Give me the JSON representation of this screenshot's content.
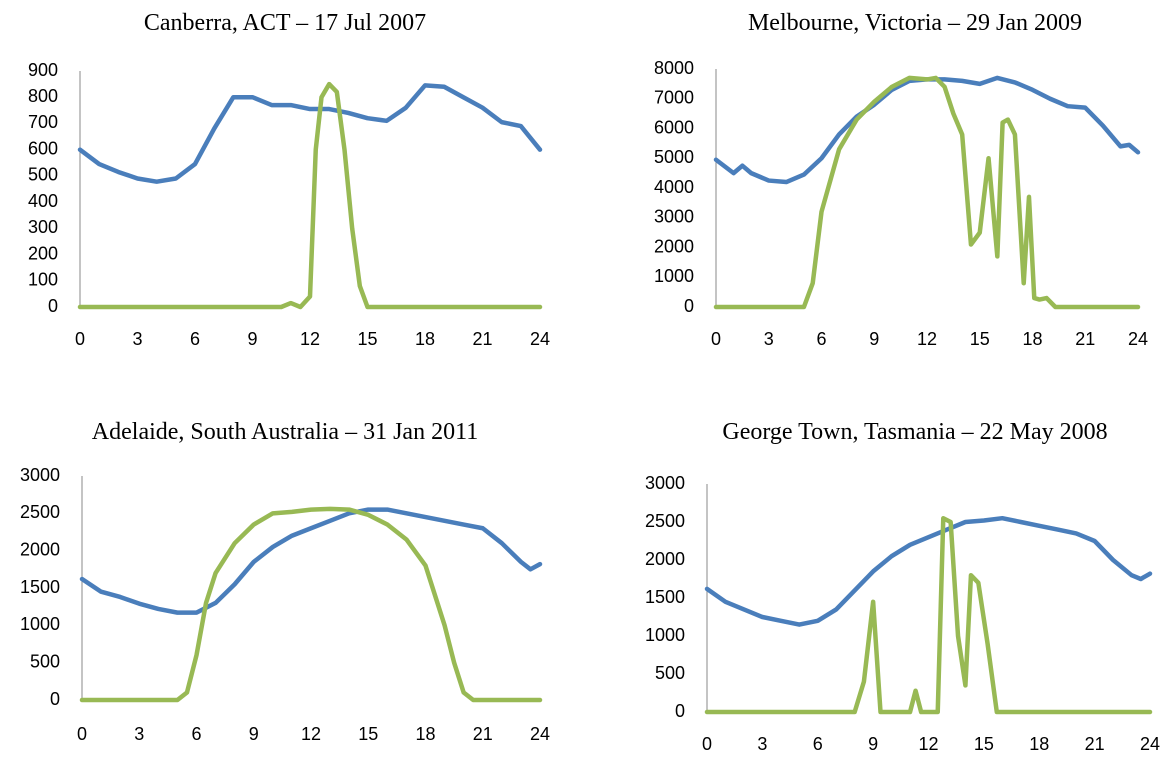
{
  "chart_data": [
    {
      "type": "line",
      "title": "Canberra, ACT – 17 Jul 2007",
      "xlim": [
        0,
        24
      ],
      "xticks": [
        0,
        3,
        6,
        9,
        12,
        15,
        18,
        21,
        24
      ],
      "ylim": [
        0,
        900
      ],
      "yticks": [
        0,
        100,
        200,
        300,
        400,
        500,
        600,
        700,
        800,
        900
      ],
      "series": [
        {
          "color": "#4a7ebb",
          "x": [
            0,
            1,
            2,
            3,
            4,
            5,
            6,
            7,
            8,
            9,
            10,
            11,
            12,
            13,
            14,
            15,
            16,
            17,
            18,
            19,
            20,
            21,
            22,
            23,
            24
          ],
          "values": [
            600,
            545,
            515,
            490,
            478,
            490,
            545,
            680,
            800,
            800,
            770,
            770,
            755,
            755,
            740,
            720,
            710,
            760,
            845,
            840,
            800,
            760,
            705,
            690,
            600
          ]
        },
        {
          "color": "#98b954",
          "x": [
            0,
            10.5,
            11,
            11.5,
            12,
            12.3,
            12.6,
            13,
            13.4,
            13.8,
            14.2,
            14.6,
            15,
            24
          ],
          "values": [
            0,
            0,
            15,
            0,
            40,
            600,
            800,
            850,
            820,
            600,
            300,
            80,
            0,
            0
          ]
        }
      ]
    },
    {
      "type": "line",
      "title": "Melbourne, Victoria – 29 Jan 2009",
      "xlim": [
        0,
        24
      ],
      "xticks": [
        0,
        3,
        6,
        9,
        12,
        15,
        18,
        21,
        24
      ],
      "ylim": [
        0,
        8000
      ],
      "yticks": [
        0,
        1000,
        2000,
        3000,
        4000,
        5000,
        6000,
        7000,
        8000
      ],
      "series": [
        {
          "color": "#4a7ebb",
          "x": [
            0,
            1,
            1.5,
            2,
            3,
            4,
            5,
            6,
            7,
            8,
            9,
            10,
            11,
            12,
            13,
            14,
            15,
            16,
            17,
            18,
            19,
            20,
            21,
            22,
            23,
            23.5,
            24
          ],
          "values": [
            4950,
            4500,
            4750,
            4500,
            4250,
            4200,
            4450,
            5000,
            5800,
            6400,
            6800,
            7300,
            7600,
            7650,
            7650,
            7600,
            7500,
            7700,
            7550,
            7300,
            7000,
            6750,
            6700,
            6100,
            5400,
            5450,
            5200
          ]
        },
        {
          "color": "#98b954",
          "x": [
            0,
            5,
            5.5,
            6,
            7,
            8,
            9,
            10,
            11,
            12,
            12.5,
            13,
            13.5,
            14,
            14.5,
            15,
            15.5,
            16,
            16.3,
            16.6,
            17,
            17.5,
            17.8,
            18.1,
            18.4,
            18.8,
            19.3,
            20,
            24
          ],
          "values": [
            0,
            0,
            800,
            3200,
            5300,
            6300,
            6900,
            7400,
            7700,
            7650,
            7700,
            7400,
            6500,
            5800,
            2100,
            2500,
            5000,
            1700,
            6200,
            6300,
            5800,
            800,
            3700,
            300,
            250,
            300,
            0,
            0,
            0
          ]
        }
      ]
    },
    {
      "type": "line",
      "title": "Adelaide, South Australia – 31 Jan 2011",
      "xlim": [
        0,
        24
      ],
      "xticks": [
        0,
        3,
        6,
        9,
        12,
        15,
        18,
        21,
        24
      ],
      "ylim": [
        0,
        3000
      ],
      "yticks": [
        0,
        500,
        1000,
        1500,
        2000,
        2500,
        3000
      ],
      "series": [
        {
          "color": "#4a7ebb",
          "x": [
            0,
            1,
            2,
            3,
            4,
            5,
            6,
            7,
            8,
            9,
            10,
            11,
            12,
            13,
            14,
            15,
            16,
            17,
            18,
            19,
            20,
            21,
            22,
            23,
            23.5,
            24
          ],
          "values": [
            1620,
            1450,
            1380,
            1290,
            1220,
            1170,
            1170,
            1300,
            1550,
            1850,
            2050,
            2200,
            2300,
            2400,
            2500,
            2550,
            2550,
            2500,
            2450,
            2400,
            2350,
            2300,
            2100,
            1850,
            1750,
            1820
          ]
        },
        {
          "color": "#98b954",
          "x": [
            0,
            5,
            5.5,
            6,
            6.5,
            7,
            8,
            9,
            10,
            11,
            12,
            13,
            14,
            15,
            16,
            17,
            18,
            19,
            19.5,
            20,
            20.5,
            21,
            24
          ],
          "values": [
            0,
            0,
            100,
            600,
            1300,
            1700,
            2100,
            2350,
            2500,
            2520,
            2550,
            2560,
            2550,
            2480,
            2350,
            2150,
            1800,
            1000,
            500,
            100,
            0,
            0,
            0
          ]
        }
      ]
    },
    {
      "type": "line",
      "title": "George Town, Tasmania – 22 May 2008",
      "xlim": [
        0,
        24
      ],
      "xticks": [
        0,
        3,
        6,
        9,
        12,
        15,
        18,
        21,
        24
      ],
      "ylim": [
        0,
        3000
      ],
      "yticks": [
        0,
        500,
        1000,
        1500,
        2000,
        2500,
        3000
      ],
      "series": [
        {
          "color": "#4a7ebb",
          "x": [
            0,
            1,
            2,
            3,
            4,
            5,
            6,
            7,
            8,
            9,
            10,
            11,
            12,
            13,
            14,
            15,
            16,
            17,
            18,
            19,
            20,
            21,
            22,
            23,
            23.5,
            24
          ],
          "values": [
            1620,
            1450,
            1350,
            1250,
            1200,
            1150,
            1200,
            1350,
            1600,
            1850,
            2050,
            2200,
            2300,
            2400,
            2500,
            2520,
            2550,
            2500,
            2450,
            2400,
            2350,
            2250,
            2000,
            1800,
            1750,
            1820
          ]
        },
        {
          "color": "#98b954",
          "x": [
            0,
            8,
            8.5,
            9,
            9.4,
            9.8,
            10.5,
            11,
            11.3,
            11.6,
            12,
            12.5,
            12.8,
            13.2,
            13.6,
            14,
            14.3,
            14.7,
            15.2,
            15.7,
            16,
            16.5,
            24
          ],
          "values": [
            0,
            0,
            400,
            1450,
            0,
            0,
            0,
            0,
            280,
            0,
            0,
            0,
            2550,
            2500,
            1000,
            350,
            1800,
            1700,
            900,
            0,
            0,
            0,
            0
          ]
        }
      ]
    }
  ]
}
